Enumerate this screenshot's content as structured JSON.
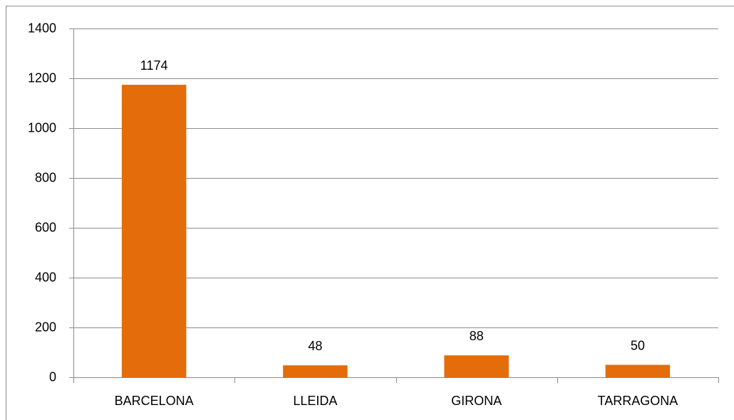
{
  "chart_data": {
    "type": "bar",
    "categories": [
      "BARCELONA",
      "LLEIDA",
      "GIRONA",
      "TARRAGONA"
    ],
    "values": [
      1174,
      48,
      88,
      50
    ],
    "color": "#e46c0a",
    "ylim": [
      0,
      1400
    ],
    "yticks": [
      0,
      200,
      400,
      600,
      800,
      1000,
      1200,
      1400
    ],
    "grid": true,
    "data_labels": true
  }
}
